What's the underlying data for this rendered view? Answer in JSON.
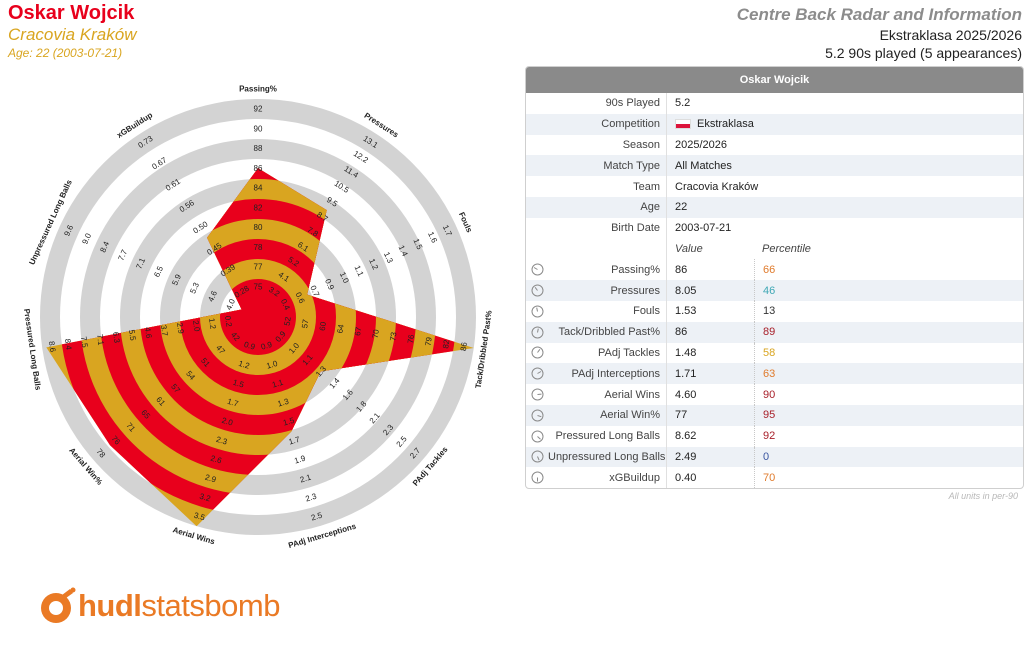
{
  "header": {
    "player_name": "Oskar Wojcik",
    "team": "Cracovia Kraków",
    "age_line": "Age: 22 (2003-07-21)",
    "title": "Centre Back Radar and Information",
    "competition_season": "Ekstraklasa 2025/2026",
    "played": "5.2 90s played (5 appearances)"
  },
  "colors": {
    "player_red": "#e8001c",
    "player_gold": "#d9a520",
    "ring_grey": "#d3d3d3",
    "logo_orange": "#ea7a25"
  },
  "chart_data": {
    "type": "radar",
    "axes": [
      {
        "name": "Passing%",
        "ticks": [
          "75",
          "77",
          "78",
          "80",
          "82",
          "84",
          "86",
          "88",
          "90",
          "92"
        ],
        "value": 86,
        "low": 73.7,
        "high": 92.5
      },
      {
        "name": "Pressures",
        "ticks": [
          "3.2",
          "4.1",
          "5.2",
          "6.1",
          "7.8",
          "8.7",
          "9.5",
          "10.5",
          "11.4",
          "12.2",
          "13.1"
        ],
        "value": 8.05,
        "low": 1.4,
        "high": 13.6
      },
      {
        "name": "Fouls",
        "ticks": [
          "0.4",
          "0.6",
          "0.7",
          "0.9",
          "1.0",
          "1.1",
          "1.2",
          "1.3",
          "1.4",
          "1.5",
          "1.6",
          "1.7"
        ],
        "value": 1.53,
        "low": 1.8,
        "high": 0.3
      },
      {
        "name": "Tack/Dribbled Past%",
        "ticks": [
          "52",
          "57",
          "60",
          "64",
          "67",
          "70",
          "73",
          "76",
          "79",
          "82",
          "86"
        ],
        "value": 86,
        "low": 46,
        "high": 83
      },
      {
        "name": "PAdj Tackles",
        "ticks": [
          "0.9",
          "1.0",
          "1.1",
          "1.3",
          "1.4",
          "1.6",
          "1.8",
          "2.1",
          "2.3",
          "2.5",
          "2.7"
        ],
        "value": 1.48,
        "low": 0.7,
        "high": 3.1
      },
      {
        "name": "PAdj Interceptions",
        "ticks": [
          "0.9",
          "1.0",
          "1.1",
          "1.3",
          "1.5",
          "1.7",
          "1.9",
          "2.1",
          "2.3",
          "2.5"
        ],
        "value": 1.71,
        "low": 0.7,
        "high": 2.7
      },
      {
        "name": "Aerial Wins",
        "ticks": [
          "0.9",
          "1.2",
          "1.5",
          "1.7",
          "2.0",
          "2.3",
          "2.6",
          "2.9",
          "3.2",
          "3.5"
        ],
        "value": 4.6,
        "low": 0.6,
        "high": 3.8
      },
      {
        "name": "Aerial Win%",
        "ticks": [
          "42",
          "47",
          "51",
          "54",
          "57",
          "61",
          "65",
          "71",
          "76",
          "78"
        ],
        "value": 77,
        "low": 37,
        "high": 82
      },
      {
        "name": "Pressured Long Balls",
        "ticks": [
          "0.2",
          "1.2",
          "2.0",
          "2.9",
          "3.7",
          "4.6",
          "5.5",
          "6.3",
          "7.1",
          "7.5",
          "8.4",
          "8.6"
        ],
        "value": 8.62,
        "low": 0.0,
        "high": 8.8
      },
      {
        "name": "Unpressured Long Balls",
        "ticks": [
          "4.0",
          "4.6",
          "5.3",
          "5.9",
          "6.5",
          "7.1",
          "7.7",
          "8.4",
          "9.0",
          "9.6"
        ],
        "value": 2.49,
        "low": 3.4,
        "high": 10.2
      },
      {
        "name": "xGBuildup",
        "ticks": [
          "0.28",
          "0.39",
          "0.45",
          "0.50",
          "0.56",
          "0.61",
          "0.67",
          "0.73"
        ],
        "value": 0.4,
        "low": 0.16,
        "high": 0.79
      }
    ]
  },
  "panel": {
    "title": "Oskar Wojcik",
    "info": [
      {
        "label": "90s Played",
        "value": "5.2"
      },
      {
        "label": "Competition",
        "value": "Ekstraklasa"
      },
      {
        "label": "Season",
        "value": "2025/2026"
      },
      {
        "label": "Match Type",
        "value": "All Matches"
      },
      {
        "label": "Team",
        "value": "Cracovia Kraków"
      },
      {
        "label": "Age",
        "value": "22"
      },
      {
        "label": "Birth Date",
        "value": "2003-07-21"
      }
    ],
    "col_value": "Value",
    "col_percentile": "Percentile",
    "metrics": [
      {
        "label": "Passing%",
        "value": "86",
        "percentile": "66",
        "pct_color": "#e07b2c"
      },
      {
        "label": "Pressures",
        "value": "8.05",
        "percentile": "46",
        "pct_color": "#3fa8b5"
      },
      {
        "label": "Fouls",
        "value": "1.53",
        "percentile": "13",
        "pct_color": "#333333"
      },
      {
        "label": "Tack/Dribbled Past%",
        "value": "86",
        "percentile": "89",
        "pct_color": "#a8202a"
      },
      {
        "label": "PAdj Tackles",
        "value": "1.48",
        "percentile": "58",
        "pct_color": "#d9a520"
      },
      {
        "label": "PAdj Interceptions",
        "value": "1.71",
        "percentile": "63",
        "pct_color": "#e07b2c"
      },
      {
        "label": "Aerial Wins",
        "value": "4.60",
        "percentile": "90",
        "pct_color": "#a8202a"
      },
      {
        "label": "Aerial Win%",
        "value": "77",
        "percentile": "95",
        "pct_color": "#a8202a"
      },
      {
        "label": "Pressured Long Balls",
        "value": "8.62",
        "percentile": "92",
        "pct_color": "#a8202a"
      },
      {
        "label": "Unpressured Long Balls",
        "value": "2.49",
        "percentile": "0",
        "pct_color": "#3a55a0"
      },
      {
        "label": "xGBuildup",
        "value": "0.40",
        "percentile": "70",
        "pct_color": "#e07b2c"
      }
    ],
    "units_note": "All units in per-90"
  },
  "logo": {
    "bold": "hudl",
    "light": "statsbomb",
    "icon": "statsbomb-logo-icon"
  }
}
